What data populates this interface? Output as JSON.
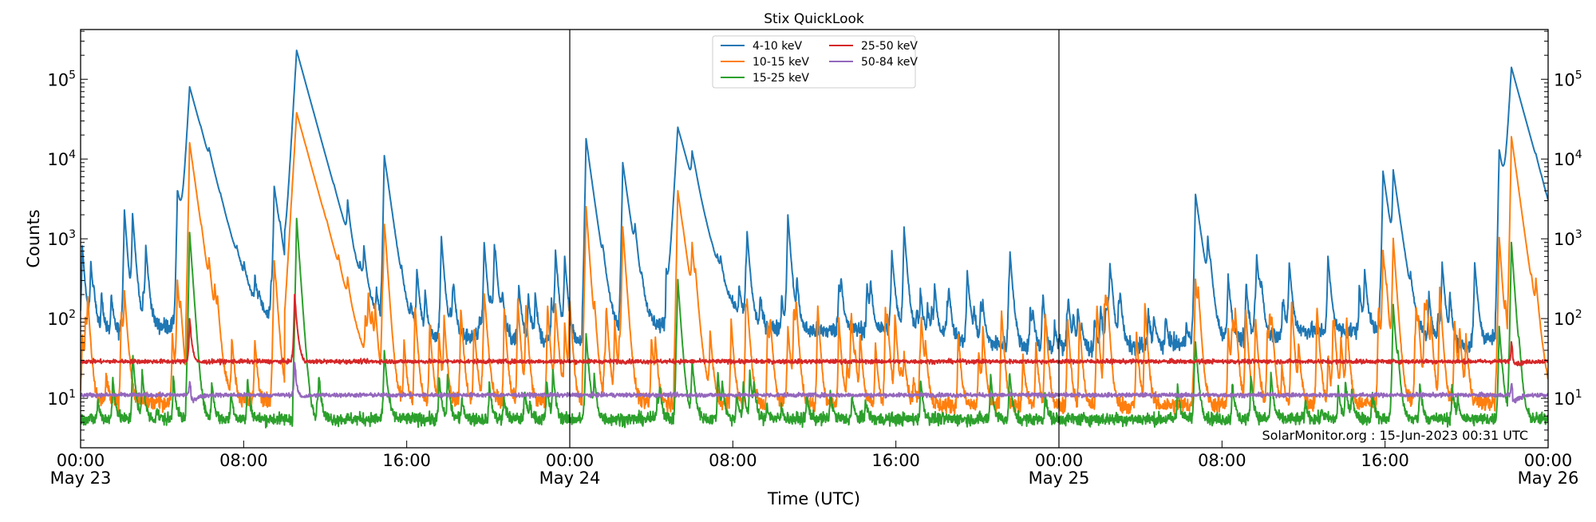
{
  "chart_data": {
    "type": "line",
    "title": "Stix QuickLook",
    "xlabel": "Time (UTC)",
    "ylabel": "Counts",
    "yscale": "log",
    "ylim": [
      2.4,
      420000
    ],
    "xlim": [
      "2023-05-23T00:00",
      "2023-05-26T00:00"
    ],
    "xticks": [
      {
        "t": "2023-05-23T00:00",
        "label": "00:00",
        "sub": "May 23"
      },
      {
        "t": "2023-05-23T08:00",
        "label": "08:00",
        "sub": ""
      },
      {
        "t": "2023-05-23T16:00",
        "label": "16:00",
        "sub": ""
      },
      {
        "t": "2023-05-24T00:00",
        "label": "00:00",
        "sub": "May 24"
      },
      {
        "t": "2023-05-24T08:00",
        "label": "08:00",
        "sub": ""
      },
      {
        "t": "2023-05-24T16:00",
        "label": "16:00",
        "sub": ""
      },
      {
        "t": "2023-05-25T00:00",
        "label": "00:00",
        "sub": "May 25"
      },
      {
        "t": "2023-05-25T08:00",
        "label": "08:00",
        "sub": ""
      },
      {
        "t": "2023-05-25T16:00",
        "label": "16:00",
        "sub": ""
      },
      {
        "t": "2023-05-26T00:00",
        "label": "00:00",
        "sub": "May 26"
      }
    ],
    "yticks": [
      {
        "value": 10,
        "base": "10",
        "exp": "1"
      },
      {
        "value": 100,
        "base": "10",
        "exp": "2"
      },
      {
        "value": 1000,
        "base": "10",
        "exp": "3"
      },
      {
        "value": 10000,
        "base": "10",
        "exp": "4"
      },
      {
        "value": 100000,
        "base": "10",
        "exp": "5"
      }
    ],
    "day_lines": [
      "2023-05-24T00:00",
      "2023-05-25T00:00"
    ],
    "grid": false,
    "legend_position": "top-center",
    "annotation": "SolarMonitor.org : 15-Jun-2023 00:31 UTC",
    "series": [
      {
        "name": "4-10 keV",
        "color": "#1f77b4",
        "background": [
          [
            "2023-05-23T00:00",
            60
          ],
          [
            "2023-05-23T04:00",
            80
          ],
          [
            "2023-05-23T08:00",
            90
          ],
          [
            "2023-05-23T12:00",
            80
          ],
          [
            "2023-05-23T16:00",
            60
          ],
          [
            "2023-05-23T20:00",
            60
          ],
          [
            "2023-05-24T00:00",
            50
          ],
          [
            "2023-05-24T04:00",
            80
          ],
          [
            "2023-05-24T08:00",
            80
          ],
          [
            "2023-05-24T12:00",
            70
          ],
          [
            "2023-05-24T16:00",
            75
          ],
          [
            "2023-05-24T20:00",
            50
          ],
          [
            "2023-05-25T00:00",
            40
          ],
          [
            "2023-05-25T08:00",
            50
          ],
          [
            "2023-05-25T12:00",
            70
          ],
          [
            "2023-05-25T16:00",
            70
          ],
          [
            "2023-05-25T20:00",
            45
          ],
          [
            "2023-05-26T00:00",
            90
          ]
        ],
        "peaks": [
          [
            "2023-05-23T00:05",
            800
          ],
          [
            "2023-05-23T00:30",
            500
          ],
          [
            "2023-05-23T02:09",
            2300
          ],
          [
            "2023-05-23T02:33",
            2000
          ],
          [
            "2023-05-23T03:12",
            780
          ],
          [
            "2023-05-23T04:45",
            4000
          ],
          [
            "2023-05-23T05:21",
            80000
          ],
          [
            "2023-05-23T05:54",
            1200
          ],
          [
            "2023-05-23T06:18",
            3200
          ],
          [
            "2023-05-23T07:40",
            250
          ],
          [
            "2023-05-23T09:30",
            4500
          ],
          [
            "2023-05-23T10:36",
            230000
          ],
          [
            "2023-05-23T13:06",
            2000
          ],
          [
            "2023-05-23T13:54",
            600
          ],
          [
            "2023-05-23T14:54",
            11000
          ],
          [
            "2023-05-23T16:30",
            400
          ],
          [
            "2023-05-23T17:42",
            1000
          ],
          [
            "2023-05-23T19:48",
            900
          ],
          [
            "2023-05-23T20:18",
            800
          ],
          [
            "2023-05-23T21:30",
            260
          ],
          [
            "2023-05-23T23:18",
            700
          ],
          [
            "2023-05-23T23:45",
            600
          ],
          [
            "2023-05-24T00:48",
            18000
          ],
          [
            "2023-05-24T02:36",
            9000
          ],
          [
            "2023-05-24T03:12",
            800
          ],
          [
            "2023-05-24T05:18",
            25000
          ],
          [
            "2023-05-24T06:00",
            7000
          ],
          [
            "2023-05-24T08:42",
            1100
          ],
          [
            "2023-05-24T10:42",
            2000
          ],
          [
            "2023-05-24T13:12",
            270
          ],
          [
            "2023-05-24T15:48",
            700
          ],
          [
            "2023-05-24T16:24",
            1400
          ],
          [
            "2023-05-24T19:30",
            400
          ],
          [
            "2023-05-24T21:36",
            600
          ],
          [
            "2023-05-25T02:30",
            450
          ],
          [
            "2023-05-25T06:42",
            3600
          ],
          [
            "2023-05-25T07:18",
            800
          ],
          [
            "2023-05-25T08:18",
            350
          ],
          [
            "2023-05-25T09:42",
            600
          ],
          [
            "2023-05-25T11:18",
            500
          ],
          [
            "2023-05-25T13:12",
            600
          ],
          [
            "2023-05-25T15:00",
            400
          ],
          [
            "2023-05-25T15:54",
            7000
          ],
          [
            "2023-05-25T16:24",
            6500
          ],
          [
            "2023-05-25T18:48",
            500
          ],
          [
            "2023-05-25T20:24",
            500
          ],
          [
            "2023-05-25T21:36",
            13000
          ],
          [
            "2023-05-25T22:12",
            140000
          ],
          [
            "2023-05-25T23:24",
            1000
          ]
        ]
      },
      {
        "name": "10-15 keV",
        "color": "#ff7f0e",
        "background": [
          [
            "2023-05-23T00:00",
            9
          ],
          [
            "2023-05-24T00:00",
            9
          ],
          [
            "2023-05-25T00:00",
            8
          ],
          [
            "2023-05-26T00:00",
            9
          ]
        ],
        "peaks": [
          [
            "2023-05-23T00:05",
            60
          ],
          [
            "2023-05-23T02:09",
            200
          ],
          [
            "2023-05-23T04:45",
            300
          ],
          [
            "2023-05-23T05:21",
            16000
          ],
          [
            "2023-05-23T06:18",
            300
          ],
          [
            "2023-05-23T09:30",
            500
          ],
          [
            "2023-05-23T10:36",
            38000
          ],
          [
            "2023-05-23T13:06",
            150
          ],
          [
            "2023-05-23T14:54",
            1400
          ],
          [
            "2023-05-23T19:48",
            200
          ],
          [
            "2023-05-23T23:18",
            150
          ],
          [
            "2023-05-24T00:48",
            2500
          ],
          [
            "2023-05-24T02:36",
            1400
          ],
          [
            "2023-05-24T05:18",
            4000
          ],
          [
            "2023-05-24T06:00",
            700
          ],
          [
            "2023-05-24T08:42",
            100
          ],
          [
            "2023-05-24T10:42",
            80
          ],
          [
            "2023-05-24T16:24",
            35
          ],
          [
            "2023-05-25T06:42",
            300
          ],
          [
            "2023-05-25T15:54",
            700
          ],
          [
            "2023-05-25T16:24",
            1000
          ],
          [
            "2023-05-25T21:36",
            1000
          ],
          [
            "2023-05-25T22:12",
            19000
          ],
          [
            "2023-05-25T23:24",
            200
          ]
        ]
      },
      {
        "name": "15-25 keV",
        "color": "#2ca02c",
        "background": [
          [
            "2023-05-23T00:00",
            5.5
          ],
          [
            "2023-05-26T00:00",
            5.5
          ]
        ],
        "peaks": [
          [
            "2023-05-23T05:21",
            1200
          ],
          [
            "2023-05-23T10:36",
            1800
          ],
          [
            "2023-05-23T14:54",
            40
          ],
          [
            "2023-05-24T00:48",
            60
          ],
          [
            "2023-05-24T05:18",
            300
          ],
          [
            "2023-05-24T06:00",
            30
          ],
          [
            "2023-05-25T06:42",
            40
          ],
          [
            "2023-05-25T16:24",
            150
          ],
          [
            "2023-05-25T21:36",
            80
          ],
          [
            "2023-05-25T22:12",
            900
          ]
        ]
      },
      {
        "name": "25-50 keV",
        "color": "#d62728",
        "background": [
          [
            "2023-05-23T00:00",
            29
          ],
          [
            "2023-05-26T00:00",
            29
          ]
        ],
        "peaks": [
          [
            "2023-05-23T05:21",
            100
          ],
          [
            "2023-05-23T10:30",
            200
          ],
          [
            "2023-05-25T22:12",
            50
          ]
        ]
      },
      {
        "name": "50-84 keV",
        "color": "#9467bd",
        "background": [
          [
            "2023-05-23T00:00",
            11
          ],
          [
            "2023-05-26T00:00",
            11
          ]
        ],
        "peaks": [
          [
            "2023-05-23T05:21",
            16
          ],
          [
            "2023-05-23T10:30",
            28
          ],
          [
            "2023-05-25T22:12",
            15
          ]
        ]
      }
    ]
  }
}
